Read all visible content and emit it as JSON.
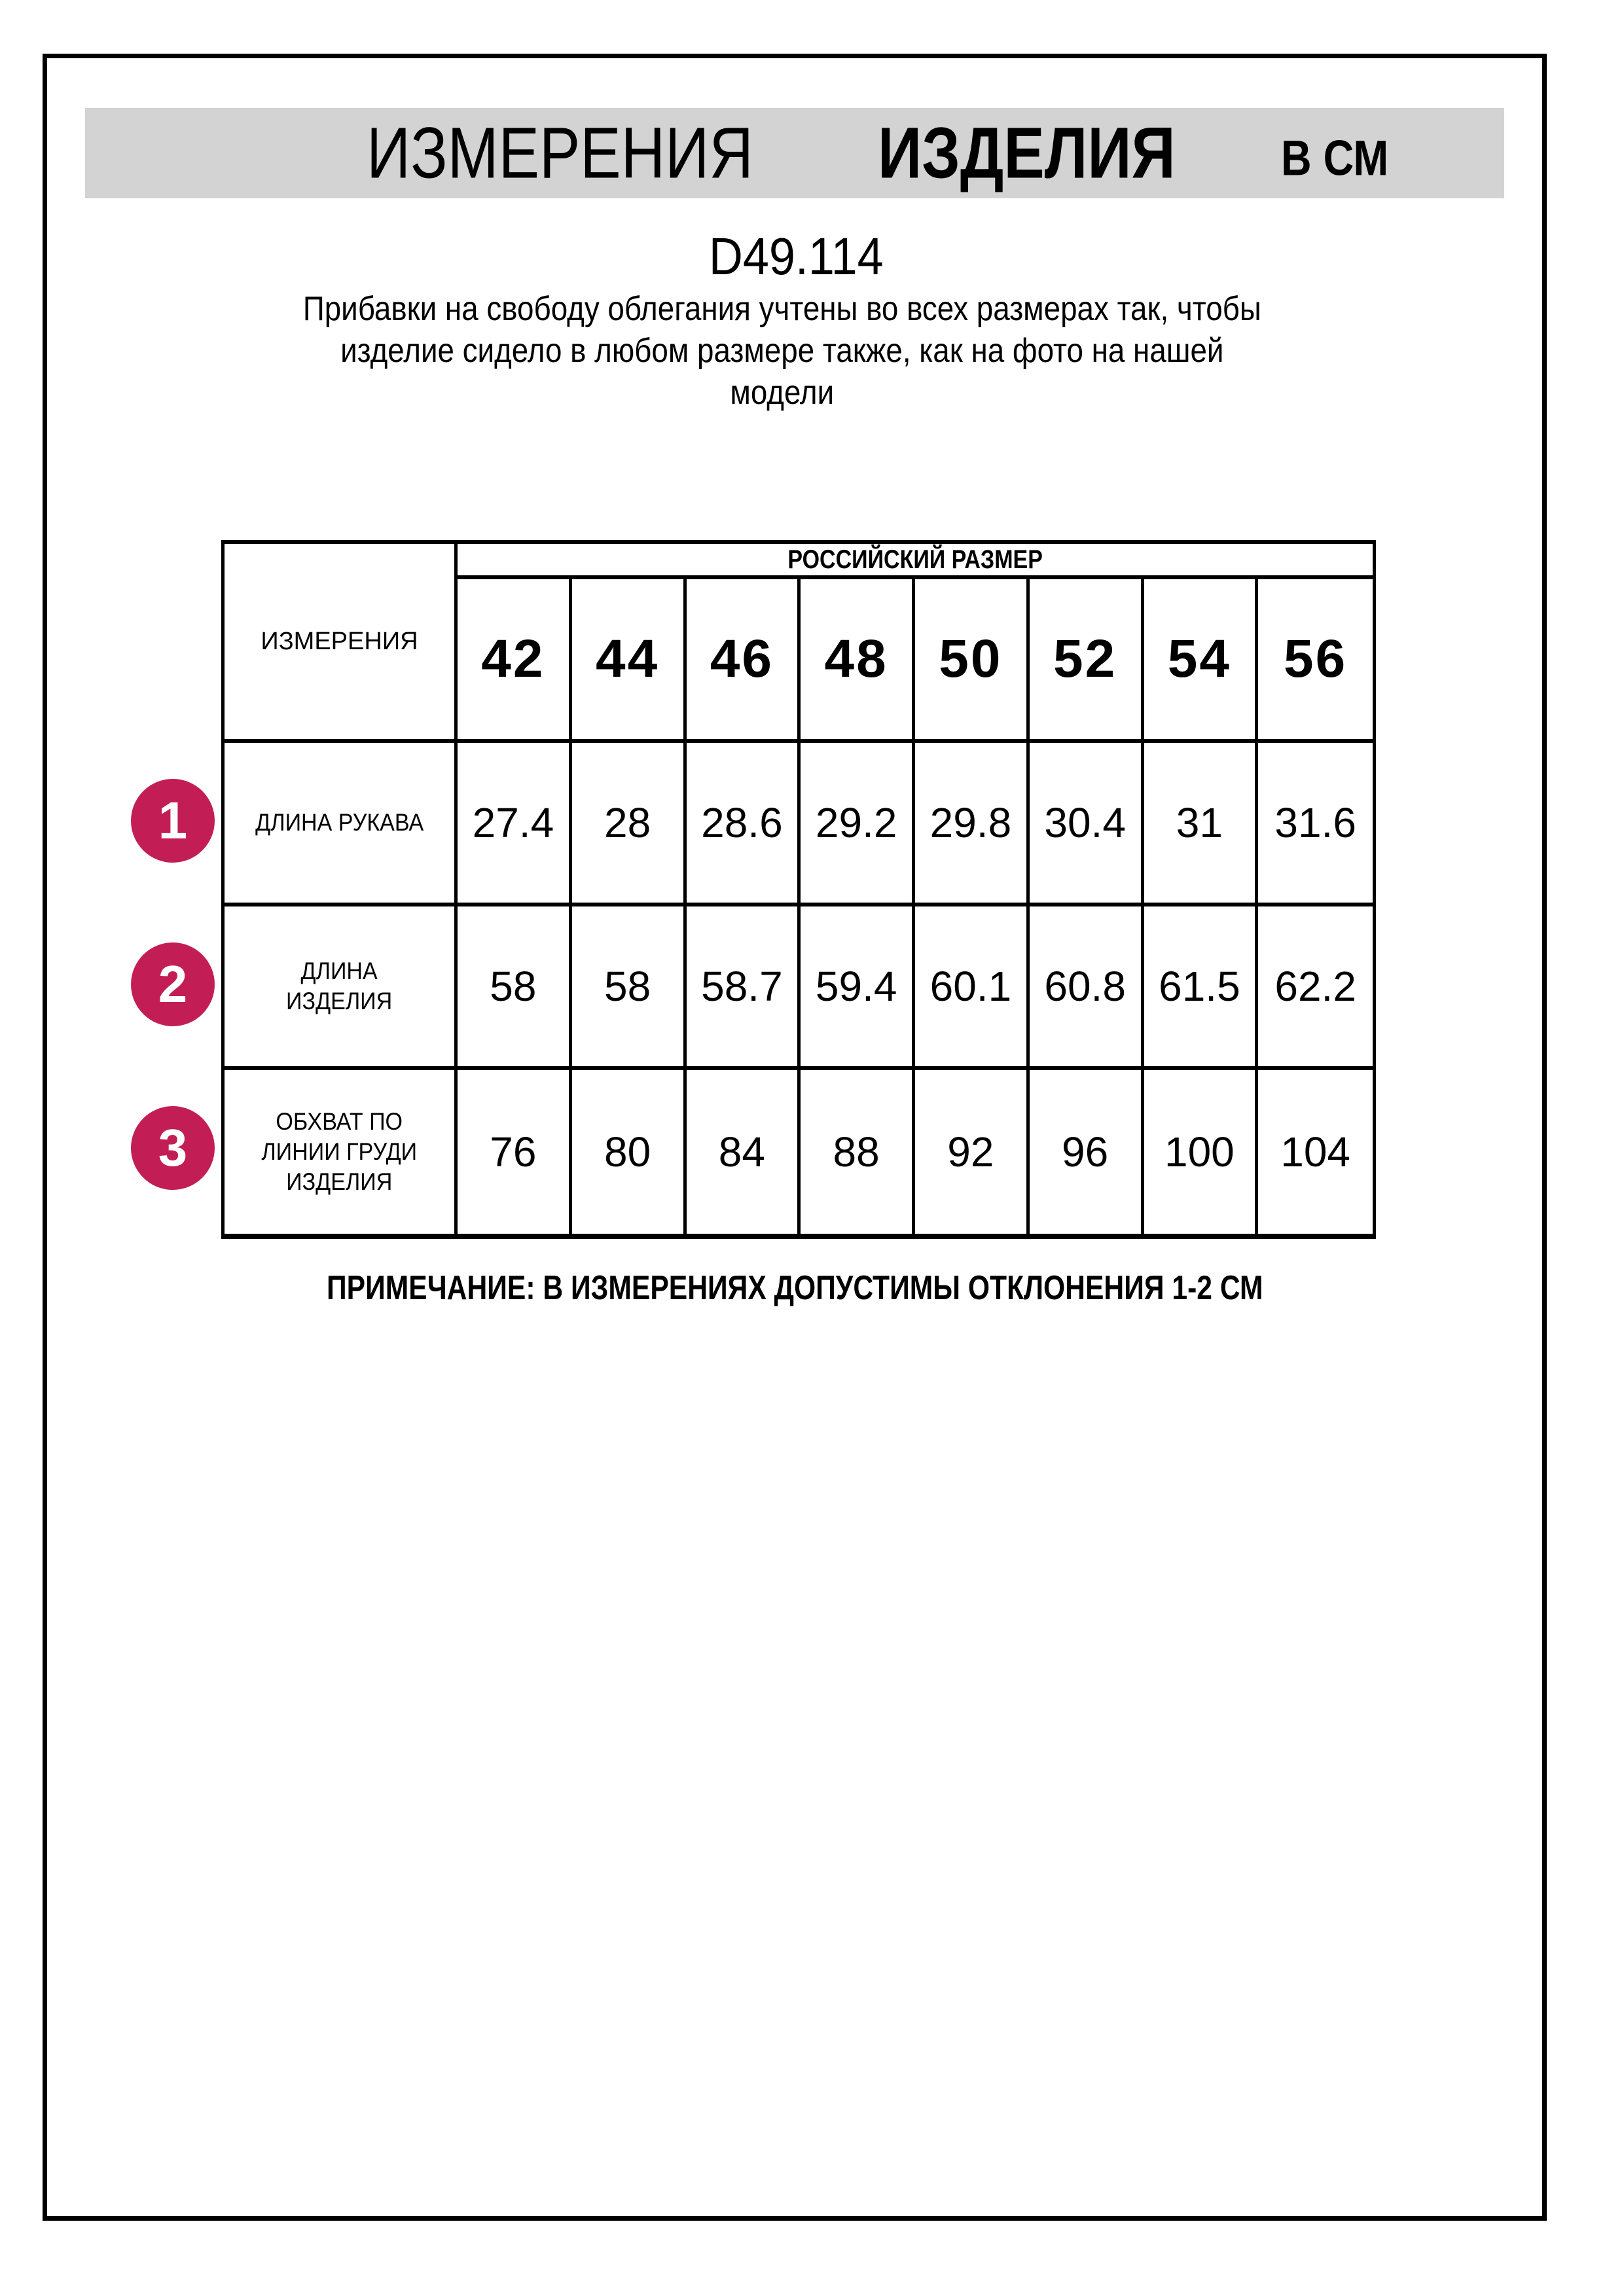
{
  "header": {
    "title_word1": "ИЗМЕРЕНИЯ",
    "title_word2": "ИЗДЕЛИЯ",
    "units": "В СМ"
  },
  "product_code": "D49.114",
  "description": "Прибавки на свободу облегания учтены во всех размерах так, чтобы\nизделие сидело в любом размере также, как на фото на нашей\nмодели",
  "table": {
    "row_header": "ИЗМЕРЕНИЯ",
    "col_group_header": "РОССИЙСКИЙ РАЗМЕР",
    "sizes": [
      "42",
      "44",
      "46",
      "48",
      "50",
      "52",
      "54",
      "56"
    ],
    "rows": [
      {
        "num": "1",
        "label": "ДЛИНА РУКАВА",
        "values": [
          "27.4",
          "28",
          "28.6",
          "29.2",
          "29.8",
          "30.4",
          "31",
          "31.6"
        ]
      },
      {
        "num": "2",
        "label": "ДЛИНА\nИЗДЕЛИЯ",
        "values": [
          "58",
          "58",
          "58.7",
          "59.4",
          "60.1",
          "60.8",
          "61.5",
          "62.2"
        ]
      },
      {
        "num": "3",
        "label": "ОБХВАТ ПО\nЛИНИИ ГРУДИ\nИЗДЕЛИЯ",
        "values": [
          "76",
          "80",
          "84",
          "88",
          "92",
          "96",
          "100",
          "104"
        ]
      }
    ]
  },
  "note": "ПРИМЕЧАНИЕ: В ИЗМЕРЕНИЯХ ДОПУСТИМЫ ОТКЛОНЕНИЯ 1-2 СМ",
  "colors": {
    "accent_badge": "#C21E55",
    "title_band": "#D3D3D3",
    "text": "#000000",
    "page": "#FFFFFF"
  }
}
